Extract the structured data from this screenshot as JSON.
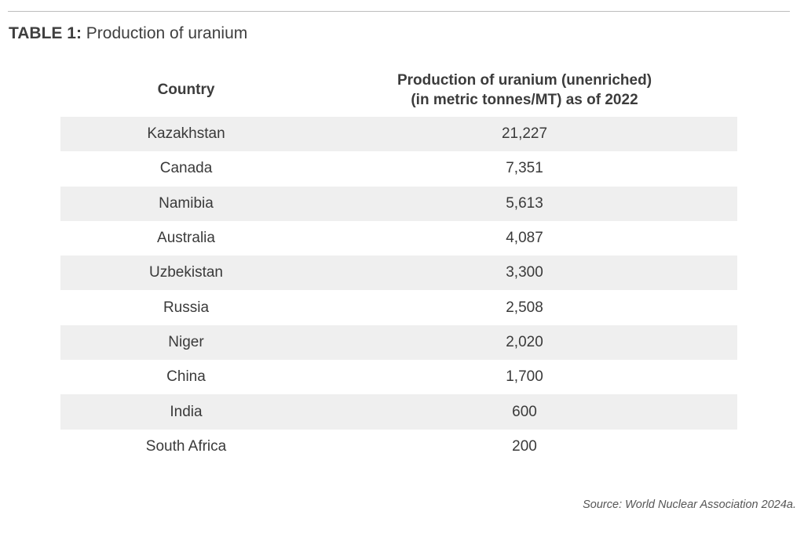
{
  "caption": {
    "label": "TABLE 1:",
    "title": "Production of uranium"
  },
  "table": {
    "headers": {
      "country": "Country",
      "value_line1": "Production of uranium (unenriched)",
      "value_line2": "(in metric tonnes/MT) as of 2022"
    },
    "rows": [
      {
        "country": "Kazakhstan",
        "value": "21,227"
      },
      {
        "country": "Canada",
        "value": "7,351"
      },
      {
        "country": "Namibia",
        "value": "5,613"
      },
      {
        "country": "Australia",
        "value": "4,087"
      },
      {
        "country": "Uzbekistan",
        "value": "3,300"
      },
      {
        "country": "Russia",
        "value": "2,508"
      },
      {
        "country": "Niger",
        "value": "2,020"
      },
      {
        "country": "China",
        "value": "1,700"
      },
      {
        "country": "India",
        "value": "600"
      },
      {
        "country": "South Africa",
        "value": "200"
      }
    ]
  },
  "source": "Source: World Nuclear Association 2024a."
}
